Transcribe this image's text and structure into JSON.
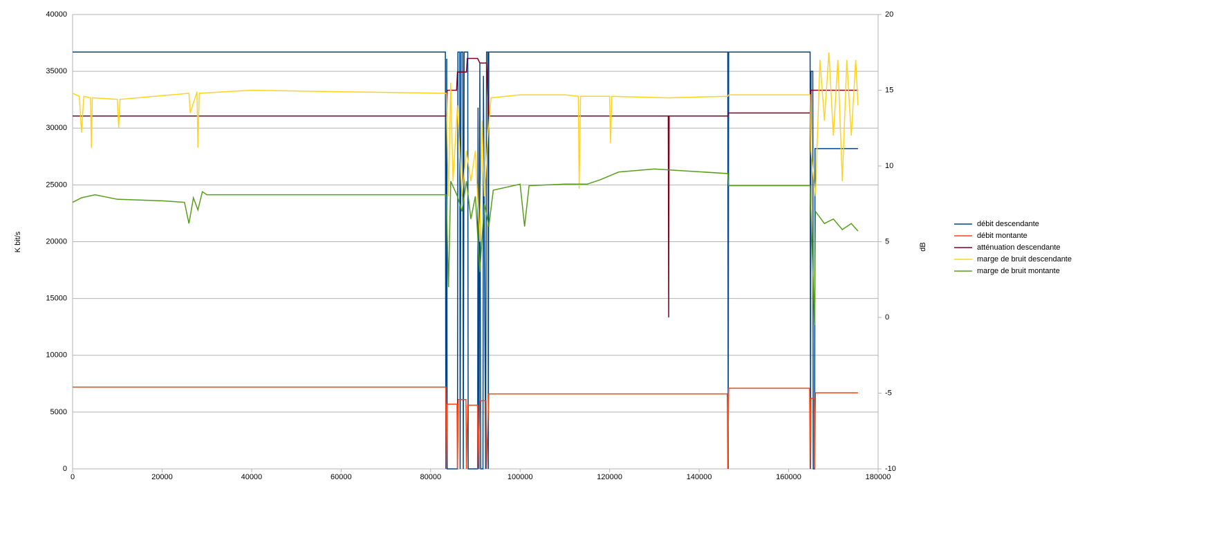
{
  "chart_data": {
    "type": "line",
    "y_label": "K bit/s",
    "y2_label": "dB",
    "xlim": [
      0,
      180000
    ],
    "xticks": [
      0,
      20000,
      40000,
      60000,
      80000,
      100000,
      120000,
      140000,
      160000,
      180000
    ],
    "ylim": [
      0,
      40000
    ],
    "yticks": [
      0,
      5000,
      10000,
      15000,
      20000,
      25000,
      30000,
      35000,
      40000
    ],
    "y2lim": [
      -10,
      20
    ],
    "y2ticks": [
      -10,
      -5,
      0,
      5,
      10,
      15,
      20
    ],
    "grid": true,
    "legend": "right",
    "series": [
      {
        "name": "débit descendante",
        "color": "#004586",
        "axis": "y",
        "x": [
          0,
          83300,
          83400,
          83600,
          83700,
          86000,
          86100,
          86500,
          86600,
          86800,
          87200,
          87300,
          87500,
          88300,
          88400,
          90500,
          90600,
          90800,
          91000,
          91200,
          91700,
          91800,
          92300,
          92500,
          92800,
          92900,
          93000,
          146400,
          146500,
          146600,
          164800,
          164900,
          165000,
          165400,
          165500,
          165800,
          165900,
          175500
        ],
        "values": [
          36700,
          36700,
          0,
          36100,
          0,
          0,
          36700,
          36700,
          0,
          36700,
          36700,
          0,
          36700,
          36700,
          0,
          0,
          31800,
          0,
          35700,
          0,
          0,
          34600,
          0,
          36700,
          36700,
          0,
          36700,
          36700,
          0,
          36700,
          36700,
          0,
          35000,
          35000,
          0,
          0,
          28200,
          28200
        ]
      },
      {
        "name": "débit montante",
        "color": "#ff420e",
        "axis": "y",
        "x": [
          0,
          83400,
          83500,
          83700,
          85900,
          86000,
          86200,
          87900,
          88000,
          88300,
          90500,
          90600,
          91000,
          92400,
          92500,
          93000,
          146300,
          146400,
          146600,
          164700,
          164800,
          165000,
          165700,
          165800,
          166000,
          175500
        ],
        "values": [
          7200,
          7200,
          0,
          5700,
          5700,
          0,
          6100,
          6100,
          0,
          5600,
          5600,
          0,
          6000,
          6000,
          0,
          6600,
          6600,
          0,
          7100,
          7100,
          0,
          6200,
          6200,
          0,
          6700,
          6700
        ]
      },
      {
        "name": "atténuation descendante",
        "color": "#7e0021",
        "axis": "y2",
        "x": [
          0,
          83500,
          83700,
          85800,
          86000,
          88000,
          88200,
          90500,
          91000,
          92500,
          93000,
          133100,
          133200,
          133300,
          146400,
          146600,
          164800,
          165000,
          175500
        ],
        "values": [
          13.3,
          13.3,
          15,
          15,
          16.2,
          16.2,
          17.1,
          17.1,
          16.8,
          16.8,
          13.3,
          13.3,
          0,
          13.3,
          13.3,
          13.5,
          13.5,
          15,
          15
        ]
      },
      {
        "name": "marge de bruit descendante",
        "color": "#ffd320",
        "axis": "y2",
        "x": [
          0,
          1500,
          2000,
          2500,
          4000,
          4200,
          4400,
          10000,
          10300,
          10600,
          26000,
          26300,
          27800,
          28000,
          28300,
          40000,
          60000,
          83500,
          84000,
          84500,
          85000,
          86000,
          87000,
          88000,
          89000,
          90000,
          91000,
          91500,
          92000,
          92800,
          93500,
          100000,
          110000,
          113000,
          113200,
          113500,
          120000,
          120200,
          120500,
          133000,
          146400,
          146600,
          164800,
          165000,
          166000,
          167000,
          168000,
          169000,
          170000,
          171000,
          172000,
          173000,
          174000,
          175000,
          175500
        ],
        "values": [
          14.8,
          14.6,
          12.2,
          14.6,
          14.5,
          11.2,
          14.5,
          14.4,
          12.5,
          14.4,
          14.8,
          13.5,
          14.9,
          11.2,
          14.8,
          15,
          14.9,
          14.8,
          8,
          15.5,
          9,
          14,
          8,
          11,
          9,
          11,
          5,
          13,
          8,
          12,
          14.5,
          14.7,
          14.7,
          14.6,
          8.5,
          14.6,
          14.6,
          11.5,
          14.6,
          14.5,
          14.6,
          14.7,
          14.7,
          11,
          8,
          17,
          13,
          17.5,
          12,
          17,
          9,
          17,
          12,
          17,
          14
        ]
      },
      {
        "name": "marge de bruit montante",
        "color": "#579d1c",
        "axis": "y2",
        "x": [
          0,
          2000,
          5000,
          10000,
          20000,
          25000,
          26000,
          27000,
          28000,
          29000,
          30000,
          50000,
          83500,
          84000,
          84500,
          86000,
          87000,
          88000,
          89000,
          90000,
          91000,
          92000,
          93000,
          94000,
          100000,
          101000,
          102000,
          110000,
          115000,
          118000,
          122000,
          130000,
          146400,
          146600,
          164800,
          165000,
          165800,
          166000,
          168000,
          170000,
          172000,
          174000,
          175500
        ],
        "values": [
          7.6,
          7.9,
          8.1,
          7.8,
          7.7,
          7.6,
          6.2,
          7.9,
          7.1,
          8.3,
          8.1,
          8.1,
          8.1,
          2,
          9,
          8,
          7,
          9,
          6.5,
          8,
          3,
          7.5,
          6,
          8.4,
          8.8,
          6,
          8.7,
          8.8,
          8.8,
          9.1,
          9.6,
          9.8,
          9.5,
          8.7,
          8.7,
          7,
          -0.5,
          7,
          6.2,
          6.5,
          5.8,
          6.2,
          5.7
        ]
      }
    ]
  }
}
